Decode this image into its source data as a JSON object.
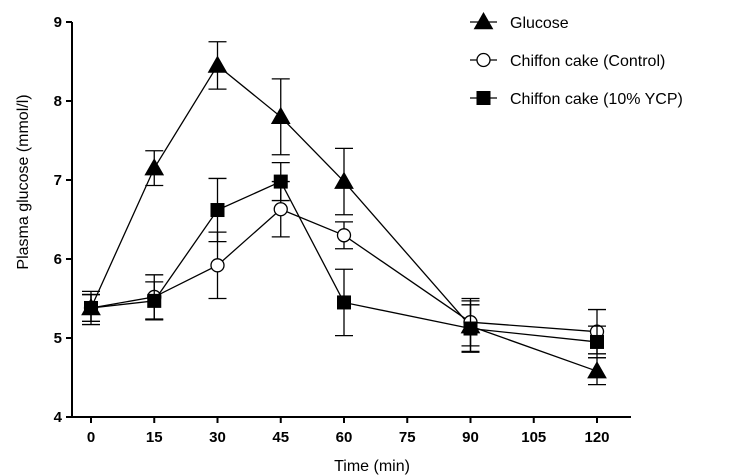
{
  "chart_data": {
    "type": "line",
    "xlabel": "Time (min)",
    "ylabel": "Plasma glucose (mmol/l)",
    "xlim": [
      0,
      120
    ],
    "ylim": [
      4,
      9
    ],
    "x_ticks": [
      0,
      15,
      30,
      45,
      60,
      75,
      90,
      105,
      120
    ],
    "y_ticks": [
      4,
      5,
      6,
      7,
      8,
      9
    ],
    "grid": false,
    "legend_position": "top-right",
    "series": [
      {
        "name": "Glucose",
        "marker": "filled-triangle",
        "x": [
          0,
          15,
          30,
          45,
          60,
          90,
          120
        ],
        "y": [
          5.38,
          7.15,
          8.45,
          7.8,
          6.98,
          5.15,
          4.58
        ],
        "err": [
          0.17,
          0.22,
          0.3,
          0.48,
          0.42,
          0.32,
          0.17
        ]
      },
      {
        "name": "Chiffon cake (Control)",
        "marker": "open-circle",
        "x": [
          0,
          15,
          30,
          45,
          60,
          90,
          120
        ],
        "y": [
          5.38,
          5.52,
          5.92,
          6.63,
          6.3,
          5.2,
          5.08
        ],
        "err": [
          0.17,
          0.28,
          0.42,
          0.35,
          0.17,
          0.3,
          0.28
        ]
      },
      {
        "name": "Chiffon cake (10% YCP)",
        "marker": "filled-square",
        "x": [
          0,
          15,
          30,
          45,
          60,
          90,
          120
        ],
        "y": [
          5.38,
          5.47,
          6.62,
          6.98,
          5.45,
          5.12,
          4.95
        ],
        "err": [
          0.21,
          0.24,
          0.4,
          0.24,
          0.42,
          0.3,
          0.2
        ]
      }
    ]
  }
}
